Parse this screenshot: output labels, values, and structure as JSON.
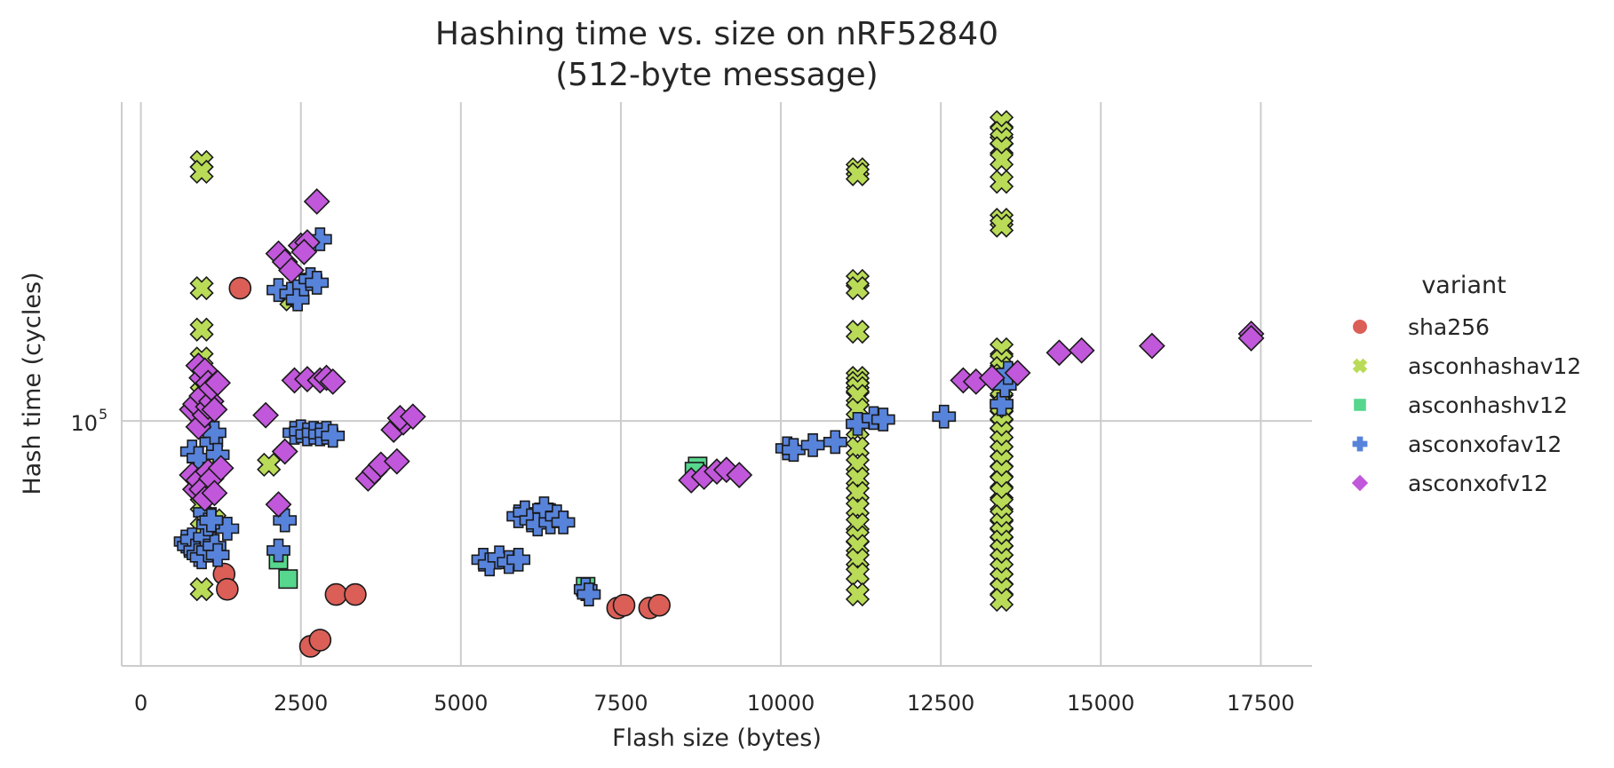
{
  "chart_data": {
    "type": "scatter",
    "title": "Hashing time vs. size on nRF52840",
    "subtitle": "(512-byte message)",
    "xlabel": "Flash size (bytes)",
    "ylabel": "Hash time (cycles)",
    "xlim": [
      -300,
      18300
    ],
    "ylim": [
      43000,
      300000
    ],
    "y_scale": "log",
    "x_ticks": [
      0,
      2500,
      5000,
      7500,
      10000,
      12500,
      15000,
      17500
    ],
    "x_tick_labels": [
      "0",
      "2500",
      "5000",
      "7500",
      "10000",
      "12500",
      "15000",
      "17500"
    ],
    "y_ticks": [
      100000
    ],
    "y_tick_labels": [
      "10",
      "5"
    ],
    "grid": true,
    "legend": {
      "title": "variant",
      "placement": "right"
    },
    "series": [
      {
        "name": "sha256",
        "marker": "circle",
        "color": "#db5f57",
        "points": [
          [
            1550,
            158000
          ],
          [
            1300,
            59000
          ],
          [
            1350,
            56000
          ],
          [
            2650,
            46000
          ],
          [
            2800,
            47000
          ],
          [
            3050,
            55000
          ],
          [
            3350,
            55000
          ],
          [
            7450,
            52500
          ],
          [
            7550,
            53000
          ],
          [
            7950,
            52500
          ],
          [
            8100,
            53000
          ]
        ]
      },
      {
        "name": "asconhashav12",
        "marker": "x",
        "color": "#b9db57",
        "points": [
          [
            950,
            244000
          ],
          [
            950,
            236000
          ],
          [
            950,
            158000
          ],
          [
            950,
            137000
          ],
          [
            950,
            124000
          ],
          [
            950,
            114000
          ],
          [
            950,
            75000
          ],
          [
            950,
            69000
          ],
          [
            950,
            56000
          ],
          [
            1150,
            87000
          ],
          [
            1150,
            71000
          ],
          [
            2000,
            86000
          ],
          [
            2350,
            152000
          ],
          [
            11200,
            238000
          ],
          [
            11200,
            234000
          ],
          [
            11200,
            162000
          ],
          [
            11200,
            158000
          ],
          [
            11200,
            136000
          ],
          [
            11200,
            116000
          ],
          [
            11200,
            114000
          ],
          [
            11200,
            112000
          ],
          [
            11200,
            109000
          ],
          [
            11200,
            104000
          ],
          [
            11200,
            97000
          ],
          [
            11200,
            91000
          ],
          [
            11200,
            86000
          ],
          [
            11200,
            82000
          ],
          [
            11200,
            78000
          ],
          [
            11200,
            74000
          ],
          [
            11200,
            70000
          ],
          [
            11200,
            67000
          ],
          [
            11200,
            65000
          ],
          [
            11200,
            62000
          ],
          [
            11200,
            59000
          ],
          [
            11200,
            55000
          ],
          [
            13450,
            280000
          ],
          [
            13450,
            270000
          ],
          [
            13450,
            264000
          ],
          [
            13450,
            256000
          ],
          [
            13450,
            246000
          ],
          [
            13450,
            228000
          ],
          [
            13450,
            200000
          ],
          [
            13450,
            196000
          ],
          [
            13450,
            128000
          ],
          [
            13450,
            123000
          ],
          [
            13450,
            120000
          ],
          [
            13450,
            117000
          ],
          [
            13450,
            114000
          ],
          [
            13450,
            111000
          ],
          [
            13450,
            108000
          ],
          [
            13450,
            105000
          ],
          [
            13450,
            102000
          ],
          [
            13450,
            99000
          ],
          [
            13450,
            96000
          ],
          [
            13450,
            93000
          ],
          [
            13450,
            90000
          ],
          [
            13450,
            87000
          ],
          [
            13450,
            84000
          ],
          [
            13450,
            81000
          ],
          [
            13450,
            78000
          ],
          [
            13450,
            75000
          ],
          [
            13450,
            72000
          ],
          [
            13450,
            70000
          ],
          [
            13450,
            68000
          ],
          [
            13450,
            66000
          ],
          [
            13450,
            64000
          ],
          [
            13450,
            62000
          ],
          [
            13450,
            60000
          ],
          [
            13450,
            58000
          ],
          [
            13450,
            56000
          ],
          [
            13450,
            54000
          ]
        ]
      },
      {
        "name": "asconhashv12",
        "marker": "square",
        "color": "#57d68d",
        "points": [
          [
            8700,
            85500
          ],
          [
            8650,
            84000
          ],
          [
            2150,
            62000
          ],
          [
            2300,
            58000
          ],
          [
            6300,
            73000
          ],
          [
            6950,
            56500
          ]
        ]
      },
      {
        "name": "asconxofav12",
        "marker": "plus",
        "color": "#5783db",
        "points": [
          [
            700,
            66000
          ],
          [
            750,
            65000
          ],
          [
            800,
            66500
          ],
          [
            850,
            64000
          ],
          [
            900,
            63000
          ],
          [
            950,
            62500
          ],
          [
            1000,
            67000
          ],
          [
            1050,
            64000
          ],
          [
            1150,
            65000
          ],
          [
            1200,
            63000
          ],
          [
            1350,
            69000
          ],
          [
            1000,
            73000
          ],
          [
            1050,
            70000
          ],
          [
            1100,
            71000
          ],
          [
            800,
            90000
          ],
          [
            900,
            88000
          ],
          [
            1100,
            93000
          ],
          [
            1150,
            96000
          ],
          [
            1200,
            89000
          ],
          [
            2150,
            64000
          ],
          [
            2250,
            71000
          ],
          [
            2150,
            157000
          ],
          [
            2350,
            155000
          ],
          [
            2450,
            152000
          ],
          [
            2550,
            160000
          ],
          [
            2650,
            163000
          ],
          [
            2750,
            161000
          ],
          [
            2800,
            187000
          ],
          [
            2400,
            96000
          ],
          [
            2500,
            96500
          ],
          [
            2600,
            95500
          ],
          [
            2700,
            96000
          ],
          [
            2800,
            95500
          ],
          [
            2900,
            96000
          ],
          [
            3000,
            95000
          ],
          [
            5350,
            62000
          ],
          [
            5450,
            61000
          ],
          [
            5600,
            62500
          ],
          [
            5750,
            61500
          ],
          [
            5900,
            62000
          ],
          [
            5900,
            72000
          ],
          [
            6000,
            73000
          ],
          [
            6100,
            71000
          ],
          [
            6200,
            70000
          ],
          [
            6300,
            74000
          ],
          [
            6400,
            70500
          ],
          [
            6500,
            72000
          ],
          [
            6600,
            70500
          ],
          [
            6950,
            56000
          ],
          [
            7000,
            55000
          ],
          [
            10100,
            91000
          ],
          [
            10200,
            90500
          ],
          [
            10500,
            92000
          ],
          [
            10850,
            93000
          ],
          [
            11200,
            99000
          ],
          [
            11450,
            101000
          ],
          [
            11600,
            100500
          ],
          [
            12550,
            101500
          ],
          [
            13450,
            106000
          ],
          [
            13500,
            113000
          ],
          [
            13550,
            118000
          ]
        ]
      },
      {
        "name": "asconxofv12",
        "marker": "diamond",
        "color": "#c157db",
        "points": [
          [
            800,
            83000
          ],
          [
            850,
            79000
          ],
          [
            900,
            81500
          ],
          [
            950,
            79000
          ],
          [
            1000,
            76500
          ],
          [
            1050,
            84000
          ],
          [
            1100,
            82000
          ],
          [
            1150,
            78000
          ],
          [
            1250,
            85000
          ],
          [
            800,
            104000
          ],
          [
            850,
            106000
          ],
          [
            900,
            98000
          ],
          [
            950,
            109000
          ],
          [
            1000,
            102000
          ],
          [
            1050,
            105000
          ],
          [
            1100,
            107000
          ],
          [
            1150,
            104000
          ],
          [
            900,
            121000
          ],
          [
            950,
            116000
          ],
          [
            1000,
            119000
          ],
          [
            1050,
            114000
          ],
          [
            1100,
            112000
          ],
          [
            1200,
            114000
          ],
          [
            2150,
            178000
          ],
          [
            2250,
            173000
          ],
          [
            2350,
            168000
          ],
          [
            2500,
            183000
          ],
          [
            2600,
            185000
          ],
          [
            2550,
            179000
          ],
          [
            2750,
            213000
          ],
          [
            2400,
            115000
          ],
          [
            2600,
            115500
          ],
          [
            2800,
            115000
          ],
          [
            2900,
            116000
          ],
          [
            3000,
            114500
          ],
          [
            1950,
            102000
          ],
          [
            2150,
            75000
          ],
          [
            2250,
            90000
          ],
          [
            3550,
            82000
          ],
          [
            3650,
            84000
          ],
          [
            3750,
            86000
          ],
          [
            4000,
            87000
          ],
          [
            3950,
            97000
          ],
          [
            4100,
            99500
          ],
          [
            4050,
            101000
          ],
          [
            4250,
            101500
          ],
          [
            8600,
            81500
          ],
          [
            8800,
            82500
          ],
          [
            9000,
            84000
          ],
          [
            9150,
            84500
          ],
          [
            9350,
            83000
          ],
          [
            12850,
            115000
          ],
          [
            13050,
            114500
          ],
          [
            13300,
            116000
          ],
          [
            13700,
            118000
          ],
          [
            14350,
            126500
          ],
          [
            14700,
            127500
          ],
          [
            15800,
            129500
          ],
          [
            17350,
            135000
          ],
          [
            17350,
            133000
          ]
        ]
      }
    ]
  }
}
